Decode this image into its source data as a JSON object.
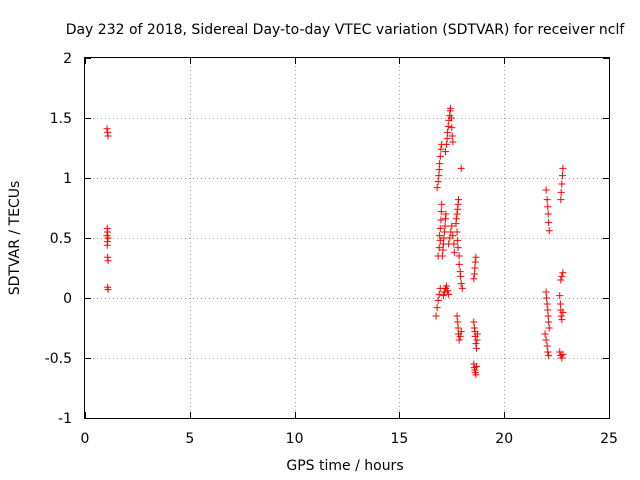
{
  "chart_data": {
    "type": "scatter",
    "title": "Day 232 of 2018, Sidereal Day-to-day VTEC variation (SDTVAR) for receiver nclf",
    "xlabel": "GPS time / hours",
    "ylabel": "SDTVAR / TECUs",
    "xlim": [
      0,
      25
    ],
    "ylim": [
      -1,
      2
    ],
    "xticks": [
      0,
      5,
      10,
      15,
      20,
      25
    ],
    "yticks": [
      -1,
      -0.5,
      0,
      0.5,
      1,
      1.5,
      2
    ],
    "xtick_labels": [
      "0",
      "5",
      "10",
      "15",
      "20",
      "25"
    ],
    "ytick_labels": [
      "-1",
      "-0.5",
      "0",
      "0.5",
      "1",
      "1.5",
      "2"
    ],
    "grid": true,
    "marker": "plus",
    "color": "#ff0000",
    "series": [
      {
        "name": "SDTVAR",
        "points": [
          [
            1.05,
            1.41
          ],
          [
            1.08,
            1.38
          ],
          [
            1.1,
            1.35
          ],
          [
            1.06,
            0.58
          ],
          [
            1.08,
            0.55
          ],
          [
            1.05,
            0.52
          ],
          [
            1.1,
            0.5
          ],
          [
            1.07,
            0.47
          ],
          [
            1.06,
            0.44
          ],
          [
            1.08,
            0.34
          ],
          [
            1.1,
            0.31
          ],
          [
            1.08,
            0.09
          ],
          [
            1.1,
            0.07
          ],
          [
            16.75,
            -0.15
          ],
          [
            16.8,
            -0.08
          ],
          [
            16.85,
            -0.02
          ],
          [
            16.9,
            0.03
          ],
          [
            16.95,
            0.08
          ],
          [
            16.85,
            0.35
          ],
          [
            16.9,
            0.42
          ],
          [
            16.95,
            0.48
          ],
          [
            16.92,
            0.52
          ],
          [
            16.95,
            0.58
          ],
          [
            16.98,
            0.65
          ],
          [
            17.0,
            0.72
          ],
          [
            17.02,
            0.78
          ],
          [
            16.8,
            0.92
          ],
          [
            16.85,
            0.97
          ],
          [
            16.88,
            1.02
          ],
          [
            16.9,
            1.07
          ],
          [
            16.92,
            1.12
          ],
          [
            16.95,
            1.18
          ],
          [
            16.98,
            1.24
          ],
          [
            17.02,
            1.28
          ],
          [
            17.05,
            0.35
          ],
          [
            17.08,
            0.4
          ],
          [
            17.1,
            0.45
          ],
          [
            17.12,
            0.5
          ],
          [
            17.15,
            0.55
          ],
          [
            17.18,
            0.6
          ],
          [
            17.2,
            0.66
          ],
          [
            17.22,
            0.7
          ],
          [
            17.1,
            0.02
          ],
          [
            17.15,
            0.05
          ],
          [
            17.2,
            0.08
          ],
          [
            17.25,
            0.1
          ],
          [
            17.3,
            0.06
          ],
          [
            17.35,
            0.03
          ],
          [
            17.2,
            1.22
          ],
          [
            17.25,
            1.28
          ],
          [
            17.28,
            1.33
          ],
          [
            17.3,
            1.38
          ],
          [
            17.33,
            1.43
          ],
          [
            17.36,
            1.48
          ],
          [
            17.4,
            1.52
          ],
          [
            17.42,
            1.56
          ],
          [
            17.44,
            1.58
          ],
          [
            17.48,
            1.5
          ],
          [
            17.5,
            1.42
          ],
          [
            17.52,
            1.35
          ],
          [
            17.55,
            1.3
          ],
          [
            17.35,
            0.45
          ],
          [
            17.4,
            0.5
          ],
          [
            17.45,
            0.55
          ],
          [
            17.5,
            0.6
          ],
          [
            17.55,
            0.52
          ],
          [
            17.6,
            0.45
          ],
          [
            17.62,
            0.38
          ],
          [
            17.7,
            0.62
          ],
          [
            17.72,
            0.66
          ],
          [
            17.75,
            0.7
          ],
          [
            17.78,
            0.74
          ],
          [
            17.8,
            0.78
          ],
          [
            17.82,
            0.82
          ],
          [
            17.75,
            0.55
          ],
          [
            17.78,
            0.48
          ],
          [
            17.8,
            0.42
          ],
          [
            17.85,
            0.35
          ],
          [
            17.75,
            -0.15
          ],
          [
            17.78,
            -0.2
          ],
          [
            17.8,
            -0.25
          ],
          [
            17.82,
            -0.3
          ],
          [
            17.85,
            -0.35
          ],
          [
            17.9,
            -0.32
          ],
          [
            17.95,
            -0.28
          ],
          [
            17.85,
            0.28
          ],
          [
            17.9,
            0.22
          ],
          [
            17.92,
            0.18
          ],
          [
            17.95,
            0.12
          ],
          [
            18.0,
            0.08
          ],
          [
            17.95,
            1.08
          ],
          [
            18.55,
            -0.55
          ],
          [
            18.58,
            -0.58
          ],
          [
            18.6,
            -0.6
          ],
          [
            18.62,
            -0.62
          ],
          [
            18.65,
            -0.64
          ],
          [
            18.68,
            -0.57
          ],
          [
            18.55,
            -0.2
          ],
          [
            18.58,
            -0.25
          ],
          [
            18.6,
            -0.28
          ],
          [
            18.62,
            -0.32
          ],
          [
            18.65,
            -0.38
          ],
          [
            18.68,
            -0.42
          ],
          [
            18.7,
            -0.35
          ],
          [
            18.72,
            -0.3
          ],
          [
            18.55,
            0.16
          ],
          [
            18.58,
            0.2
          ],
          [
            18.6,
            0.25
          ],
          [
            18.62,
            0.3
          ],
          [
            18.65,
            0.34
          ],
          [
            22.0,
            0.9
          ],
          [
            22.05,
            0.82
          ],
          [
            22.08,
            0.76
          ],
          [
            22.1,
            0.7
          ],
          [
            22.12,
            0.63
          ],
          [
            22.15,
            0.56
          ],
          [
            21.95,
            -0.3
          ],
          [
            22.0,
            -0.35
          ],
          [
            22.05,
            -0.4
          ],
          [
            22.08,
            -0.45
          ],
          [
            22.12,
            -0.48
          ],
          [
            22.0,
            0.05
          ],
          [
            22.02,
            0.0
          ],
          [
            22.05,
            -0.05
          ],
          [
            22.08,
            -0.1
          ],
          [
            22.1,
            -0.15
          ],
          [
            22.12,
            -0.2
          ],
          [
            22.15,
            -0.25
          ],
          [
            22.7,
            0.82
          ],
          [
            22.72,
            0.88
          ],
          [
            22.75,
            0.95
          ],
          [
            22.78,
            1.02
          ],
          [
            22.8,
            1.08
          ],
          [
            22.65,
            -0.45
          ],
          [
            22.7,
            -0.48
          ],
          [
            22.75,
            -0.5
          ],
          [
            22.8,
            -0.47
          ],
          [
            22.65,
            0.02
          ],
          [
            22.68,
            -0.05
          ],
          [
            22.7,
            -0.1
          ],
          [
            22.72,
            -0.15
          ],
          [
            22.75,
            -0.18
          ],
          [
            22.8,
            -0.12
          ],
          [
            22.7,
            0.15
          ],
          [
            22.75,
            0.18
          ],
          [
            22.8,
            0.21
          ]
        ]
      }
    ]
  }
}
